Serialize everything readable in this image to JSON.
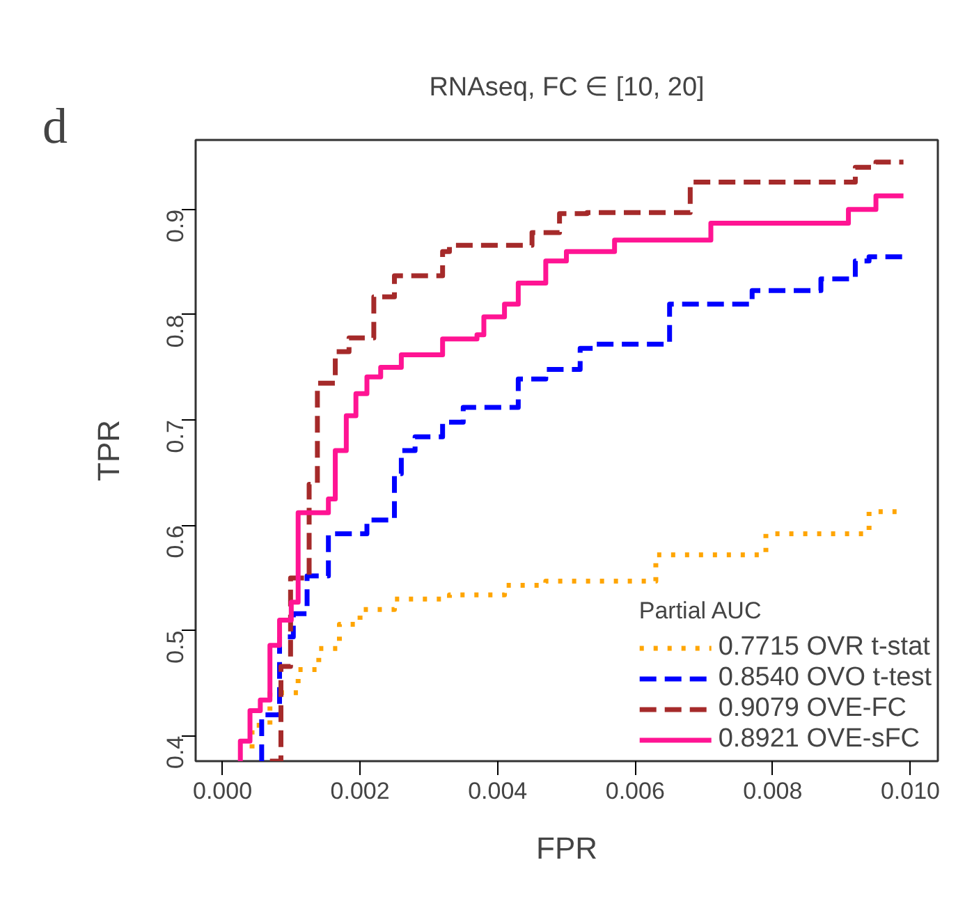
{
  "chart_data": {
    "type": "step",
    "title": "RNAseq, FC ∈ [10, 20]",
    "xlabel": "FPR",
    "ylabel": "TPR",
    "legend_title": "Partial AUC",
    "legend": "bottom right",
    "grid": false,
    "annotations": [
      "d"
    ],
    "xlim": [
      -0.00039,
      0.0104
    ],
    "ylim": [
      0.376,
      0.966
    ],
    "xticks": [
      {
        "value": 0,
        "label": "0.000"
      },
      {
        "value": 0.002,
        "label": "0.002"
      },
      {
        "value": 0.004,
        "label": "0.004"
      },
      {
        "value": 0.006,
        "label": "0.006"
      },
      {
        "value": 0.008,
        "label": "0.008"
      },
      {
        "value": 0.01,
        "label": "0.010"
      }
    ],
    "yticks": [
      0.4,
      0.5,
      0.6,
      0.7,
      0.8,
      0.9
    ],
    "series": [
      {
        "name": "0.7715 OVR t-stat",
        "color": "#ffa500",
        "line_style": "dotted",
        "x": [
          0.00043,
          0.00043,
          0.00069,
          0.0011,
          0.0014,
          0.0017,
          0.002,
          0.0025,
          0.0033,
          0.0041,
          0.0047,
          0.0063,
          0.0079,
          0.0094,
          0.0098
        ],
        "values": [
          0.388,
          0.41,
          0.441,
          0.463,
          0.483,
          0.506,
          0.52,
          0.53,
          0.534,
          0.543,
          0.547,
          0.572,
          0.592,
          0.613,
          0.613
        ]
      },
      {
        "name": "0.8540 OVO t-test",
        "color": "#0000ff",
        "line_style": "dashed",
        "x": [
          0.00057,
          0.00057,
          0.00083,
          0.00103,
          0.00123,
          0.00154,
          0.0021,
          0.0025,
          0.0026,
          0.0028,
          0.0032,
          0.0035,
          0.0043,
          0.0047,
          0.0052,
          0.0054,
          0.0065,
          0.0077,
          0.0087,
          0.0092,
          0.0094,
          0.0099
        ],
        "values": [
          0.376,
          0.42,
          0.494,
          0.516,
          0.552,
          0.592,
          0.605,
          0.649,
          0.671,
          0.684,
          0.698,
          0.712,
          0.739,
          0.748,
          0.768,
          0.772,
          0.81,
          0.823,
          0.834,
          0.851,
          0.855,
          0.855
        ]
      },
      {
        "name": "0.9079 OVE-FC",
        "color": "#a52a2a",
        "line_style": "dashed",
        "x": [
          0.00069,
          0.00085,
          0.00099,
          0.00126,
          0.00138,
          0.00164,
          0.00184,
          0.0022,
          0.0025,
          0.0032,
          0.0033,
          0.0045,
          0.0049,
          0.0053,
          0.0068,
          0.0092,
          0.0095,
          0.0099
        ],
        "values": [
          0.376,
          0.466,
          0.55,
          0.639,
          0.735,
          0.765,
          0.778,
          0.817,
          0.837,
          0.86,
          0.866,
          0.878,
          0.896,
          0.897,
          0.926,
          0.94,
          0.945,
          0.945
        ]
      },
      {
        "name": "0.8921 OVE-sFC",
        "color": "#ff1493",
        "line_style": "solid",
        "x": [
          0.00026,
          0.00026,
          0.0004,
          0.00055,
          0.00069,
          0.00083,
          0.001,
          0.0011,
          0.00154,
          0.00164,
          0.0018,
          0.00194,
          0.0021,
          0.0023,
          0.0026,
          0.0032,
          0.0037,
          0.0038,
          0.0041,
          0.0043,
          0.0047,
          0.005,
          0.0057,
          0.0071,
          0.0091,
          0.0095,
          0.0099
        ],
        "values": [
          0.376,
          0.395,
          0.424,
          0.434,
          0.486,
          0.51,
          0.527,
          0.612,
          0.625,
          0.671,
          0.704,
          0.725,
          0.741,
          0.75,
          0.762,
          0.777,
          0.781,
          0.798,
          0.81,
          0.83,
          0.851,
          0.86,
          0.871,
          0.887,
          0.9,
          0.913,
          0.913
        ]
      }
    ]
  }
}
